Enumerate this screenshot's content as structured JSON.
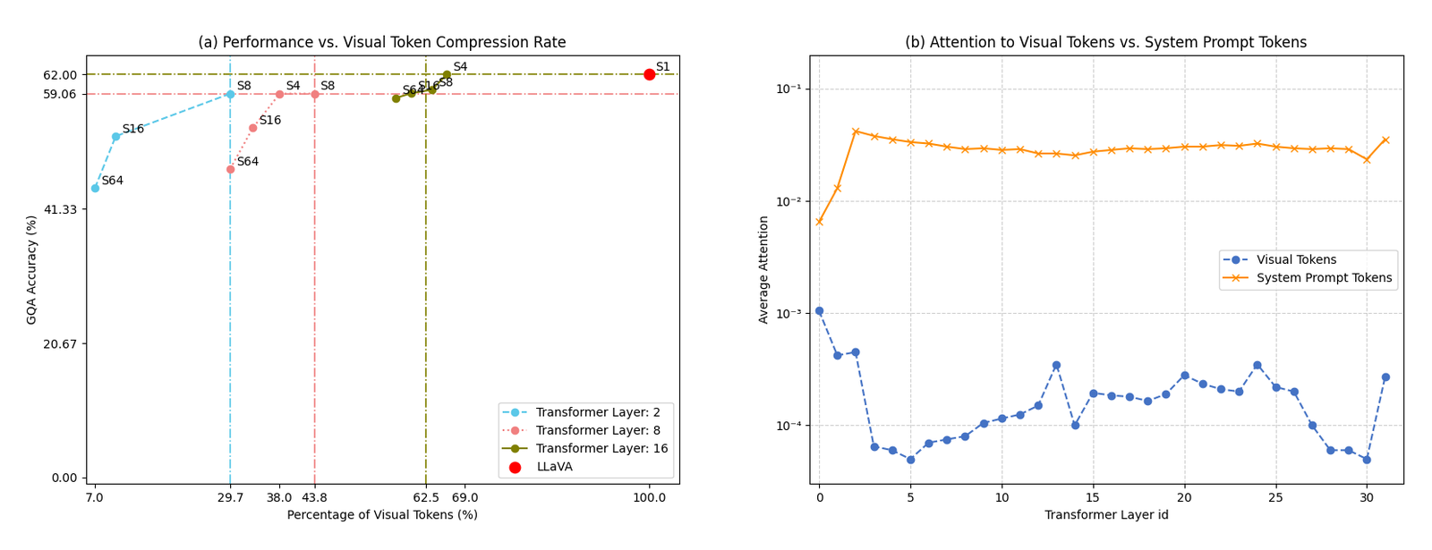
{
  "chart_data": [
    {
      "type": "line",
      "title": "(a) Performance vs. Visual Token Compression Rate",
      "x_label": "Percentage of Visual Tokens (%)",
      "y_label": "GQA Accuracy (%)",
      "series": [
        {
          "name": "Transformer Layer: 2",
          "color": "#5BC8E8",
          "line_style": "dashed",
          "marker": "o",
          "x": [
            7.0,
            10.5,
            29.7
          ],
          "values": [
            44.5,
            52.5,
            59.06
          ],
          "labels": [
            "S64",
            "S16",
            "S8"
          ]
        },
        {
          "name": "Transformer Layer: 8",
          "color": "#F08080",
          "line_style": "dotted",
          "marker": "o",
          "x": [
            29.7,
            33.5,
            38.0,
            43.8
          ],
          "values": [
            47.5,
            53.8,
            59.06,
            59.06
          ],
          "labels": [
            "S64",
            "S16",
            "S4",
            "S8"
          ]
        },
        {
          "name": "Transformer Layer: 16",
          "color": "#808000",
          "line_style": "solid",
          "marker": "o",
          "x": [
            57.5,
            60.0,
            63.5,
            66.0
          ],
          "values": [
            58.4,
            59.1,
            59.65,
            62.0
          ],
          "labels": [
            "S64",
            "S16",
            "S8",
            "S4"
          ]
        },
        {
          "name": "LLaVA",
          "type": "scatter",
          "color": "#FF0000",
          "marker": "o",
          "x": [
            100.0
          ],
          "values": [
            62.0
          ],
          "labels": [
            "S1"
          ]
        }
      ],
      "reference_lines": [
        {
          "axis": "y",
          "value": 59.06,
          "color": "#F08080",
          "line_style": "dashdot"
        },
        {
          "axis": "y",
          "value": 62.0,
          "color": "#808000",
          "line_style": "dashdot"
        },
        {
          "axis": "x",
          "value": 29.7,
          "color": "#5BC8E8",
          "line_style": "dashdot"
        },
        {
          "axis": "x",
          "value": 43.8,
          "color": "#F08080",
          "line_style": "dashdot"
        },
        {
          "axis": "x",
          "value": 62.5,
          "color": "#808000",
          "line_style": "dashdot"
        }
      ],
      "xlim": [
        5.5,
        105.0
      ],
      "xticks": [
        {
          "value": 7.0,
          "label": "7.0"
        },
        {
          "value": 29.7,
          "label": "29.7"
        },
        {
          "value": 38.0,
          "label": "38.0"
        },
        {
          "value": 43.8,
          "label": "43.8"
        },
        {
          "value": 62.5,
          "label": "62.5"
        },
        {
          "value": 69.0,
          "label": "69.0"
        },
        {
          "value": 100.0,
          "label": "100.0"
        }
      ],
      "ylim": [
        -1.0,
        65.0
      ],
      "yticks": [
        {
          "value": 0.0,
          "label": "0.00"
        },
        {
          "value": 20.67,
          "label": "20.67"
        },
        {
          "value": 41.33,
          "label": "41.33"
        },
        {
          "value": 59.06,
          "label": "59.06"
        },
        {
          "value": 62.0,
          "label": "62.00"
        }
      ],
      "grid": false,
      "legend": "lower right"
    },
    {
      "type": "line",
      "title": "(b) Attention to Visual Tokens vs. System Prompt Tokens",
      "x_label": "Transformer Layer id",
      "y_label": "Average Attention",
      "log": "y",
      "x": [
        0,
        1,
        2,
        3,
        4,
        5,
        6,
        7,
        8,
        9,
        10,
        11,
        12,
        13,
        14,
        15,
        16,
        17,
        18,
        19,
        20,
        21,
        22,
        23,
        24,
        25,
        26,
        27,
        28,
        29,
        30,
        31
      ],
      "series": [
        {
          "name": "Visual Tokens",
          "color": "#4472C4",
          "line_style": "dashed",
          "marker": "o",
          "values": [
            0.00105,
            0.00042,
            0.00045,
            6.5e-05,
            6e-05,
            5e-05,
            7e-05,
            7.5e-05,
            8e-05,
            0.000105,
            0.000115,
            0.000125,
            0.00015,
            0.00035,
            0.0001,
            0.000195,
            0.000185,
            0.00018,
            0.000165,
            0.00019,
            0.00028,
            0.000235,
            0.00021,
            0.0002,
            0.00035,
            0.00022,
            0.0002,
            0.0001,
            6e-05,
            6e-05,
            5e-05,
            0.00027
          ]
        },
        {
          "name": "System Prompt Tokens",
          "color": "#FF8C00",
          "line_style": "solid",
          "marker": "x",
          "values": [
            0.0065,
            0.013,
            0.042,
            0.038,
            0.0355,
            0.0335,
            0.0325,
            0.0305,
            0.029,
            0.0295,
            0.0285,
            0.029,
            0.0265,
            0.0265,
            0.0255,
            0.0275,
            0.0285,
            0.0295,
            0.029,
            0.0295,
            0.0305,
            0.0305,
            0.0315,
            0.031,
            0.0325,
            0.0305,
            0.0295,
            0.029,
            0.0295,
            0.029,
            0.0235,
            0.0355
          ]
        }
      ],
      "xlim": [
        -0.5,
        32
      ],
      "xticks": [
        0,
        5,
        10,
        15,
        20,
        25,
        30
      ],
      "ylim": [
        3e-05,
        0.2
      ],
      "yticks": [
        {
          "value": 0.0001,
          "label": "10⁻⁴"
        },
        {
          "value": 0.001,
          "label": "10⁻³"
        },
        {
          "value": 0.01,
          "label": "10⁻²"
        },
        {
          "value": 0.1,
          "label": "10⁻¹"
        }
      ],
      "grid": true,
      "legend": "center right"
    }
  ]
}
